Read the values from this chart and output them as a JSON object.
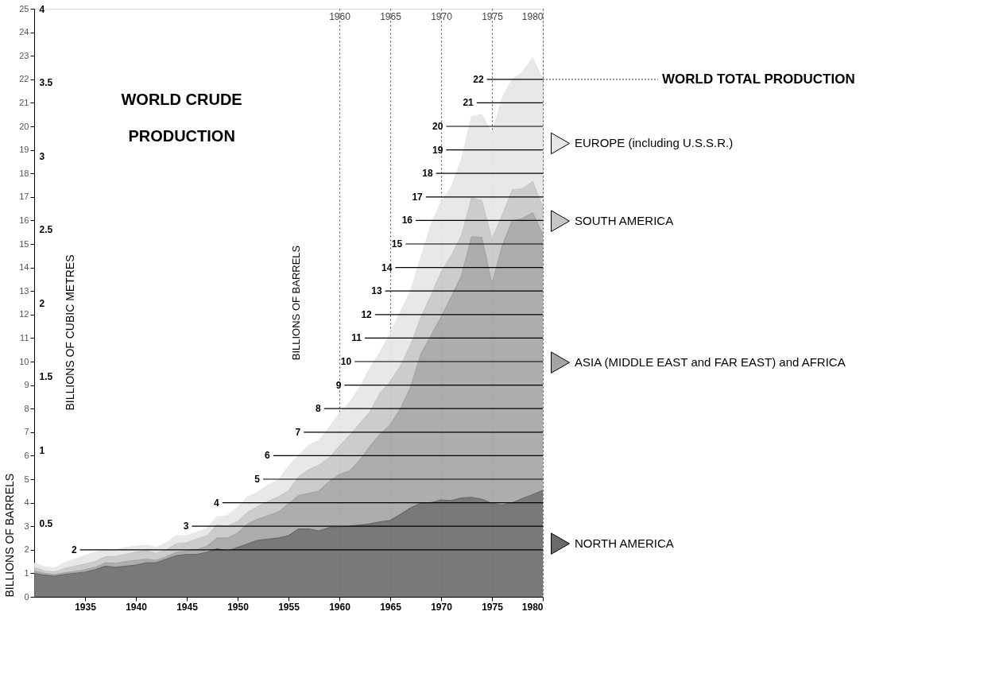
{
  "chart_data": {
    "type": "area",
    "title": "WORLD CRUDE PRODUCTION",
    "ylabel": "BILLIONS OF BARRELS",
    "y2label": "BILLIONS OF CUBIC METRES",
    "stacked": true,
    "legend": "right",
    "x": [
      1930,
      1931,
      1932,
      1933,
      1934,
      1935,
      1936,
      1937,
      1938,
      1939,
      1940,
      1941,
      1942,
      1943,
      1944,
      1945,
      1946,
      1947,
      1948,
      1949,
      1950,
      1951,
      1952,
      1953,
      1954,
      1955,
      1956,
      1957,
      1958,
      1959,
      1960,
      1961,
      1962,
      1963,
      1964,
      1965,
      1966,
      1967,
      1968,
      1969,
      1970,
      1971,
      1972,
      1973,
      1974,
      1975,
      1976,
      1977,
      1978,
      1979,
      1980
    ],
    "series": [
      {
        "name": "NORTH AMERICA",
        "color": "#6a6a6a",
        "values": [
          1.0,
          0.92,
          0.88,
          0.95,
          1.0,
          1.05,
          1.15,
          1.3,
          1.25,
          1.3,
          1.35,
          1.45,
          1.45,
          1.6,
          1.75,
          1.8,
          1.8,
          1.9,
          2.05,
          1.95,
          2.1,
          2.25,
          2.4,
          2.45,
          2.5,
          2.6,
          2.88,
          2.88,
          2.8,
          2.94,
          2.96,
          3.0,
          3.05,
          3.1,
          3.19,
          3.25,
          3.5,
          3.78,
          3.97,
          4.0,
          4.12,
          4.09,
          4.2,
          4.23,
          4.15,
          3.97,
          3.9,
          4.0,
          4.18,
          4.35,
          4.52
        ]
      },
      {
        "name": "ASIA (MIDDLE EAST and FAR EAST) and AFRICA",
        "color": "#a4a4a4",
        "values": [
          0.1,
          0.08,
          0.07,
          0.07,
          0.08,
          0.1,
          0.1,
          0.15,
          0.17,
          0.2,
          0.2,
          0.15,
          0.1,
          0.1,
          0.15,
          0.15,
          0.2,
          0.25,
          0.45,
          0.55,
          0.6,
          0.85,
          0.9,
          1.0,
          1.1,
          1.35,
          1.42,
          1.52,
          1.7,
          1.96,
          2.24,
          2.35,
          2.75,
          3.3,
          3.71,
          4.05,
          4.5,
          5.12,
          6.33,
          7.1,
          7.78,
          8.66,
          9.45,
          11.07,
          11.13,
          9.33,
          11.0,
          12.0,
          11.9,
          11.98,
          10.88
        ]
      },
      {
        "name": "SOUTH AMERICA",
        "color": "#c6c6c6",
        "values": [
          0.15,
          0.1,
          0.1,
          0.18,
          0.22,
          0.25,
          0.25,
          0.25,
          0.3,
          0.3,
          0.35,
          0.35,
          0.3,
          0.3,
          0.35,
          0.35,
          0.45,
          0.45,
          0.55,
          0.5,
          0.5,
          0.5,
          0.55,
          0.6,
          0.65,
          0.55,
          0.8,
          1.0,
          1.1,
          1.0,
          1.2,
          1.5,
          1.55,
          1.45,
          1.75,
          1.85,
          1.8,
          1.8,
          1.55,
          1.7,
          1.9,
          1.75,
          1.7,
          1.65,
          1.57,
          1.9,
          1.3,
          1.3,
          1.27,
          1.32,
          1.15
        ]
      },
      {
        "name": "EUROPE (including U.S.S.R.)",
        "color": "#e6e6e6",
        "values": [
          0.17,
          0.18,
          0.17,
          0.25,
          0.3,
          0.35,
          0.4,
          0.3,
          0.28,
          0.3,
          0.25,
          0.25,
          0.25,
          0.3,
          0.35,
          0.3,
          0.3,
          0.3,
          0.35,
          0.45,
          0.6,
          0.65,
          0.6,
          0.7,
          0.7,
          1.05,
          0.9,
          1.05,
          1.05,
          1.3,
          1.4,
          1.4,
          1.55,
          1.85,
          1.75,
          2.05,
          2.3,
          2.3,
          2.55,
          3.0,
          3.0,
          2.9,
          3.25,
          3.45,
          3.65,
          4.5,
          5.0,
          4.7,
          4.95,
          5.25,
          5.45
        ]
      }
    ],
    "xlim": [
      1930,
      1980
    ],
    "xticks": [
      1935,
      1940,
      1945,
      1950,
      1955,
      1960,
      1965,
      1970,
      1975,
      1980
    ],
    "ylim": [
      0,
      25
    ],
    "yticks": [
      0,
      1,
      2,
      3,
      4,
      5,
      6,
      7,
      8,
      9,
      10,
      11,
      12,
      13,
      14,
      15,
      16,
      17,
      18,
      19,
      20,
      21,
      22,
      23,
      24,
      25
    ],
    "grid": "x",
    "x2lim": [
      1930,
      1980
    ],
    "x2ticks": [
      1960,
      1965,
      1970,
      1975,
      1980
    ],
    "y2lim": [
      0,
      4
    ],
    "y2ticks": [
      0.5,
      1,
      1.5,
      2,
      2.5,
      3,
      3.5,
      4
    ],
    "ref_lines": [
      {
        "axis": "y",
        "value": 2,
        "label": "2"
      },
      {
        "axis": "y",
        "value": 3,
        "label": "3"
      },
      {
        "axis": "y",
        "value": 4,
        "label": "4"
      },
      {
        "axis": "y",
        "value": 5,
        "label": "5"
      },
      {
        "axis": "y",
        "value": 6,
        "label": "6"
      },
      {
        "axis": "y",
        "value": 7,
        "label": "7"
      },
      {
        "axis": "y",
        "value": 8,
        "label": "8"
      },
      {
        "axis": "y",
        "value": 9,
        "label": "9"
      },
      {
        "axis": "y",
        "value": 10,
        "label": "10"
      },
      {
        "axis": "y",
        "value": 11,
        "label": "11"
      },
      {
        "axis": "y",
        "value": 12,
        "label": "12"
      },
      {
        "axis": "y",
        "value": 13,
        "label": "13"
      },
      {
        "axis": "y",
        "value": 14,
        "label": "14"
      },
      {
        "axis": "y",
        "value": 15,
        "label": "15"
      },
      {
        "axis": "y",
        "value": 16,
        "label": "16"
      },
      {
        "axis": "y",
        "value": 17,
        "label": "17"
      },
      {
        "axis": "y",
        "value": 18,
        "label": "18"
      },
      {
        "axis": "y",
        "value": 19,
        "label": "19"
      },
      {
        "axis": "y",
        "value": 20,
        "label": "20"
      },
      {
        "axis": "y",
        "value": 21,
        "label": "21"
      },
      {
        "axis": "y",
        "value": 22,
        "label": "22"
      }
    ],
    "annotations": [
      {
        "text": "WORLD TOTAL PRODUCTION",
        "x": 1980,
        "y": 22.0
      },
      "BILLIONS OF BARRELS"
    ]
  }
}
